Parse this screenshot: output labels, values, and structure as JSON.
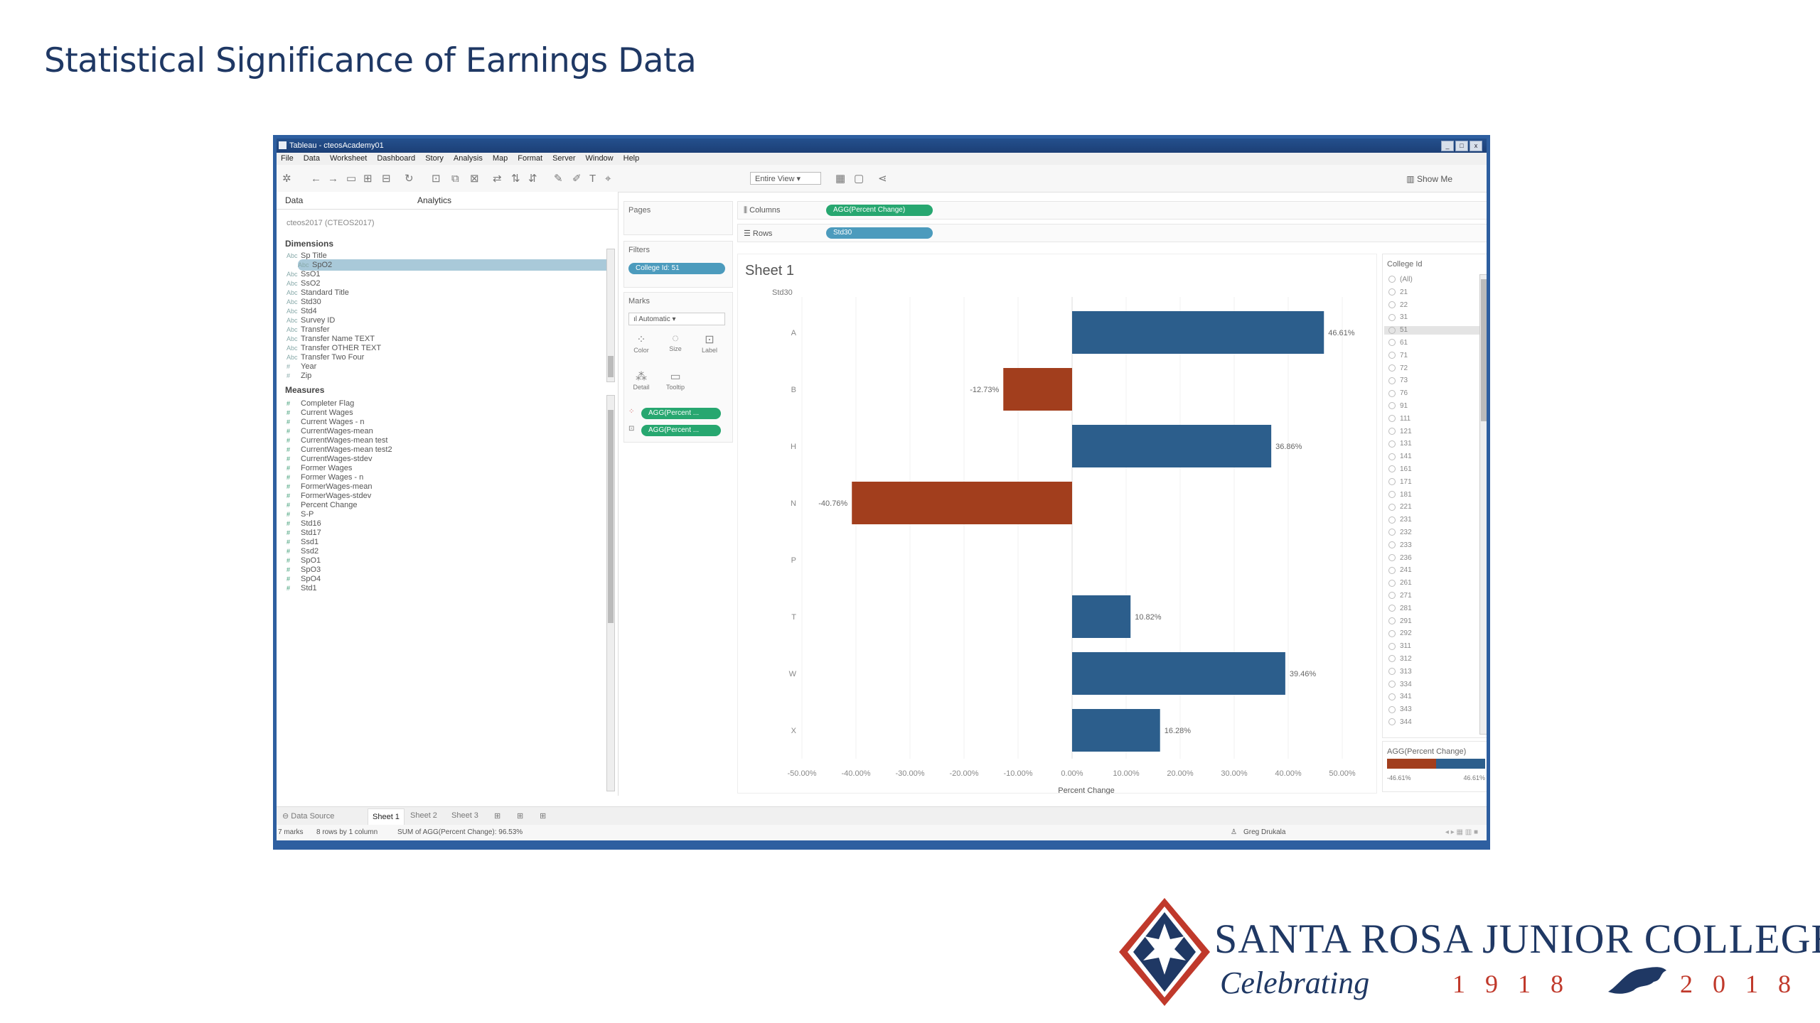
{
  "slide": {
    "title": "Statistical Significance of Earnings Data"
  },
  "window": {
    "title": "Tableau - cteosAcademy01",
    "controls": [
      "_",
      "□",
      "x"
    ]
  },
  "menu": [
    "File",
    "Data",
    "Worksheet",
    "Dashboard",
    "Story",
    "Analysis",
    "Map",
    "Format",
    "Server",
    "Window",
    "Help"
  ],
  "toolbar": {
    "view_select": "Entire View",
    "show_me": "Show Me"
  },
  "datapane": {
    "tab_data": "Data",
    "tab_analytics": "Analytics",
    "source": "cteos2017 (CTEOS2017)",
    "dimensions_label": "Dimensions",
    "dimensions": [
      "Sp Title",
      "SpO2",
      "SsO1",
      "SsO2",
      "Standard Title",
      "Std30",
      "Std4",
      "Survey ID",
      "Transfer",
      "Transfer Name TEXT",
      "Transfer OTHER TEXT",
      "Transfer Two Four",
      "Year",
      "Zip"
    ],
    "measures_label": "Measures",
    "measures": [
      "Completer Flag",
      "Current Wages",
      "Current Wages - n",
      "CurrentWages-mean",
      "CurrentWages-mean test",
      "CurrentWages-mean test2",
      "CurrentWages-stdev",
      "Former Wages",
      "Former Wages - n",
      "FormerWages-mean",
      "FormerWages-stdev",
      "Percent Change",
      "S-P",
      "Std16",
      "Std17",
      "Ssd1",
      "Ssd2",
      "SpO1",
      "SpO3",
      "SpO4",
      "Std1"
    ]
  },
  "shelves": {
    "pages_label": "Pages",
    "filters_label": "Filters",
    "filter_pill": "College Id: 51",
    "marks_label": "Marks",
    "marks_type": "Automatic",
    "mark_buttons": [
      "Color",
      "Size",
      "Label",
      "Detail",
      "Tooltip"
    ],
    "mark_pill1": "AGG(Percent ...",
    "mark_pill2": "AGG(Percent ...",
    "columns_label": "Columns",
    "columns_pill": "AGG(Percent Change)",
    "rows_label": "Rows",
    "rows_pill": "Std30"
  },
  "view": {
    "sheet_title": "Sheet 1",
    "row_header": "Std30"
  },
  "chart_data": {
    "type": "bar",
    "orientation": "horizontal",
    "categories": [
      "A",
      "B",
      "H",
      "N",
      "P",
      "T",
      "W",
      "X"
    ],
    "values": [
      46.61,
      -12.73,
      36.86,
      -40.76,
      null,
      10.82,
      39.46,
      16.28
    ],
    "data_labels": [
      "46.61%",
      "-12.73%",
      "36.86%",
      "-40.76%",
      "",
      "10.82%",
      "39.46%",
      "16.28%"
    ],
    "xlabel": "Percent Change",
    "xticks": [
      "-50.00%",
      "-40.00%",
      "-30.00%",
      "-20.00%",
      "-10.00%",
      "0.00%",
      "10.00%",
      "20.00%",
      "30.00%",
      "40.00%",
      "50.00%"
    ],
    "xlim": [
      -50,
      50
    ],
    "colors": {
      "positive": "#2c5e8c",
      "negative": "#a23e1d"
    }
  },
  "legend": {
    "filter_title": "College Id",
    "items": [
      "(All)",
      "21",
      "22",
      "31",
      "51",
      "61",
      "71",
      "72",
      "73",
      "76",
      "91",
      "111",
      "121",
      "131",
      "141",
      "161",
      "171",
      "181",
      "221",
      "231",
      "232",
      "233",
      "236",
      "241",
      "261",
      "271",
      "281",
      "291",
      "292",
      "311",
      "312",
      "313",
      "334",
      "341",
      "343",
      "344"
    ],
    "selected": "51",
    "color_title": "AGG(Percent Change)",
    "color_min": "-46.61%",
    "color_max": "46.61%"
  },
  "tabs": {
    "data_source": "Data Source",
    "sheets": [
      "Sheet 1",
      "Sheet 2",
      "Sheet 3"
    ]
  },
  "status": {
    "marks": "7 marks",
    "rows": "8 rows by 1 column",
    "sum": "SUM of AGG(Percent Change): 96.53%",
    "user": "Greg Drukala"
  },
  "logo": {
    "name": "SANTA ROSA JUNIOR COLLEGE",
    "celebrating": "Celebrating",
    "year_start": "1918",
    "year_end": "2018"
  }
}
